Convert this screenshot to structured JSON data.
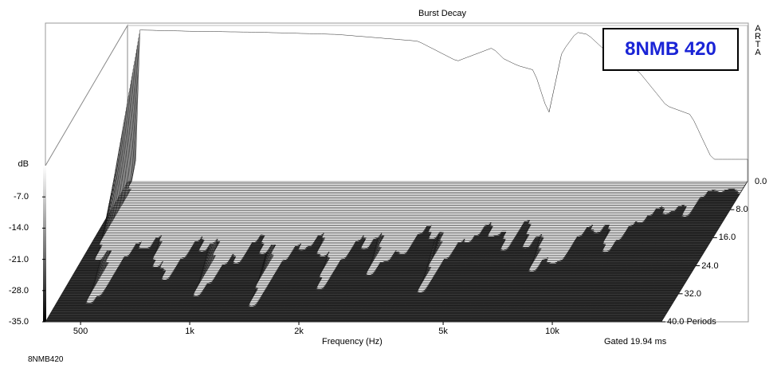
{
  "chart_data": {
    "type": "waterfall",
    "title": "Burst Decay",
    "xlabel": "Frequency (Hz)",
    "ylabel": "dB",
    "zlabel": "Periods",
    "x_scale": "log",
    "x_ticks": [
      "500",
      "1k",
      "2k",
      "5k",
      "10k"
    ],
    "y_ticks": [
      "-7.0",
      "-14.0",
      "-21.0",
      "-28.0",
      "-35.0"
    ],
    "y_top_label": "0.0",
    "z_ticks": [
      "8.0",
      "16.0",
      "24.0",
      "32.0",
      "40.0 Periods"
    ],
    "ylim": [
      -35,
      0
    ],
    "zlim": [
      0,
      40
    ],
    "xlim": [
      400,
      20000
    ],
    "gate_note": "Gated 19.94 ms",
    "brand_box": "8NMB 420",
    "software_mark": "ARTA",
    "footer_label": "8NMB420",
    "surface_color": "#ffffff",
    "floor_color": "#3c3c3c",
    "series": [
      {
        "freq_hz": [
          420,
          430,
          600,
          900,
          1500,
          2500,
          3200,
          4000,
          4300,
          4700,
          5200,
          5700,
          6200,
          6800,
          7300,
          8000,
          9000,
          10000,
          12000,
          14000,
          16000
        ],
        "start_db": [
          -35,
          -1,
          -1.3,
          -1.5,
          -2,
          -3.5,
          -8,
          -5,
          -7.5,
          -9,
          -10,
          -20,
          -6,
          -1.5,
          -2,
          -5,
          -9,
          -10,
          -18,
          -20,
          -30
        ]
      }
    ]
  }
}
